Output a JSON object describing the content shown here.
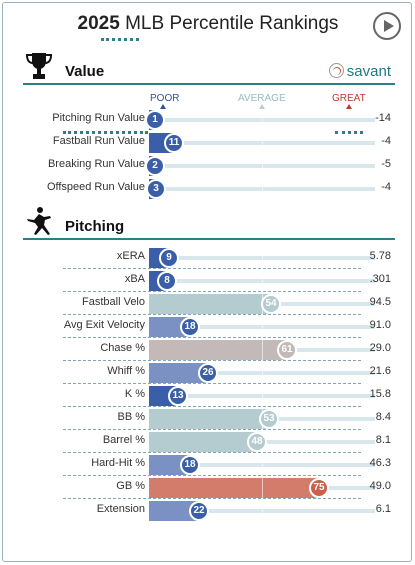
{
  "title": {
    "year": "2025",
    "rest": "MLB Percentile Rankings"
  },
  "brand": "savant",
  "sections": {
    "value": "Value",
    "pitching": "Pitching"
  },
  "scale": {
    "poor": "POOR",
    "average": "AVERAGE",
    "great": "GREAT"
  },
  "colors": {
    "poor": "#3a5fa8",
    "poor_bar": "#7b90c3",
    "average_bar": "#c4b9b9",
    "good_bar": "#b4cbd0",
    "great_bar": "#d47c6c",
    "great_dot": "#cf5f4c",
    "track": "#d7e7ec",
    "accent": "#2d7f8a"
  },
  "value_rows": [
    {
      "name": "Pitching Run Value",
      "percentile": 1,
      "value": "-14"
    },
    {
      "name": "Fastball Run Value",
      "percentile": 11,
      "value": "-4"
    },
    {
      "name": "Breaking Run Value",
      "percentile": 2,
      "value": "-5"
    },
    {
      "name": "Offspeed Run Value",
      "percentile": 3,
      "value": "-4"
    }
  ],
  "pitching_rows": [
    {
      "name": "xERA",
      "percentile": 9,
      "value": "5.78"
    },
    {
      "name": "xBA",
      "percentile": 8,
      "value": ".301"
    },
    {
      "name": "Fastball Velo",
      "percentile": 54,
      "value": "94.5"
    },
    {
      "name": "Avg Exit Velocity",
      "percentile": 18,
      "value": "91.0"
    },
    {
      "name": "Chase %",
      "percentile": 61,
      "value": "29.0"
    },
    {
      "name": "Whiff %",
      "percentile": 26,
      "value": "21.6"
    },
    {
      "name": "K %",
      "percentile": 13,
      "value": "15.8"
    },
    {
      "name": "BB %",
      "percentile": 53,
      "value": "8.4"
    },
    {
      "name": "Barrel %",
      "percentile": 48,
      "value": "8.1"
    },
    {
      "name": "Hard-Hit %",
      "percentile": 18,
      "value": "46.3"
    },
    {
      "name": "GB %",
      "percentile": 75,
      "value": "49.0"
    },
    {
      "name": "Extension",
      "percentile": 22,
      "value": "6.1"
    }
  ]
}
